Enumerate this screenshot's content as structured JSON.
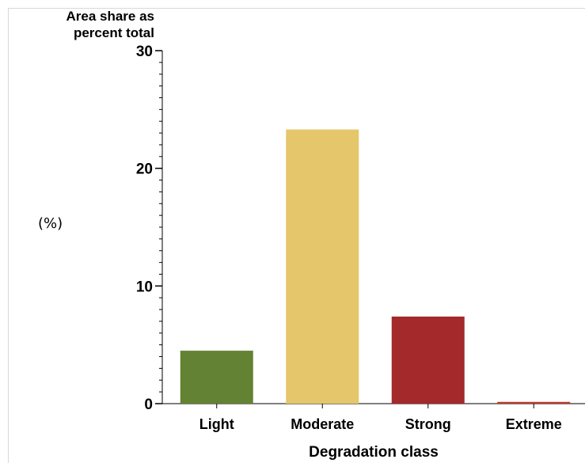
{
  "chart_data": {
    "type": "bar",
    "ylabel_line1": "Area share as",
    "ylabel_line2": "percent total",
    "unit_label": "(%)",
    "xlabel": "Degradation class",
    "categories": [
      "Light",
      "Moderate",
      "Strong",
      "Extreme"
    ],
    "values": [
      4.5,
      23.3,
      7.4,
      0.15
    ],
    "colors": [
      "#638233",
      "#e5c66b",
      "#a3292b",
      "#c0392b"
    ],
    "ylim": [
      0,
      30
    ],
    "y_ticks": [
      0,
      10,
      20,
      30
    ],
    "y_tick_labels": [
      "0",
      "10",
      "20",
      "30"
    ],
    "minor_tick_step": 1,
    "grid": false,
    "legend": "none"
  }
}
